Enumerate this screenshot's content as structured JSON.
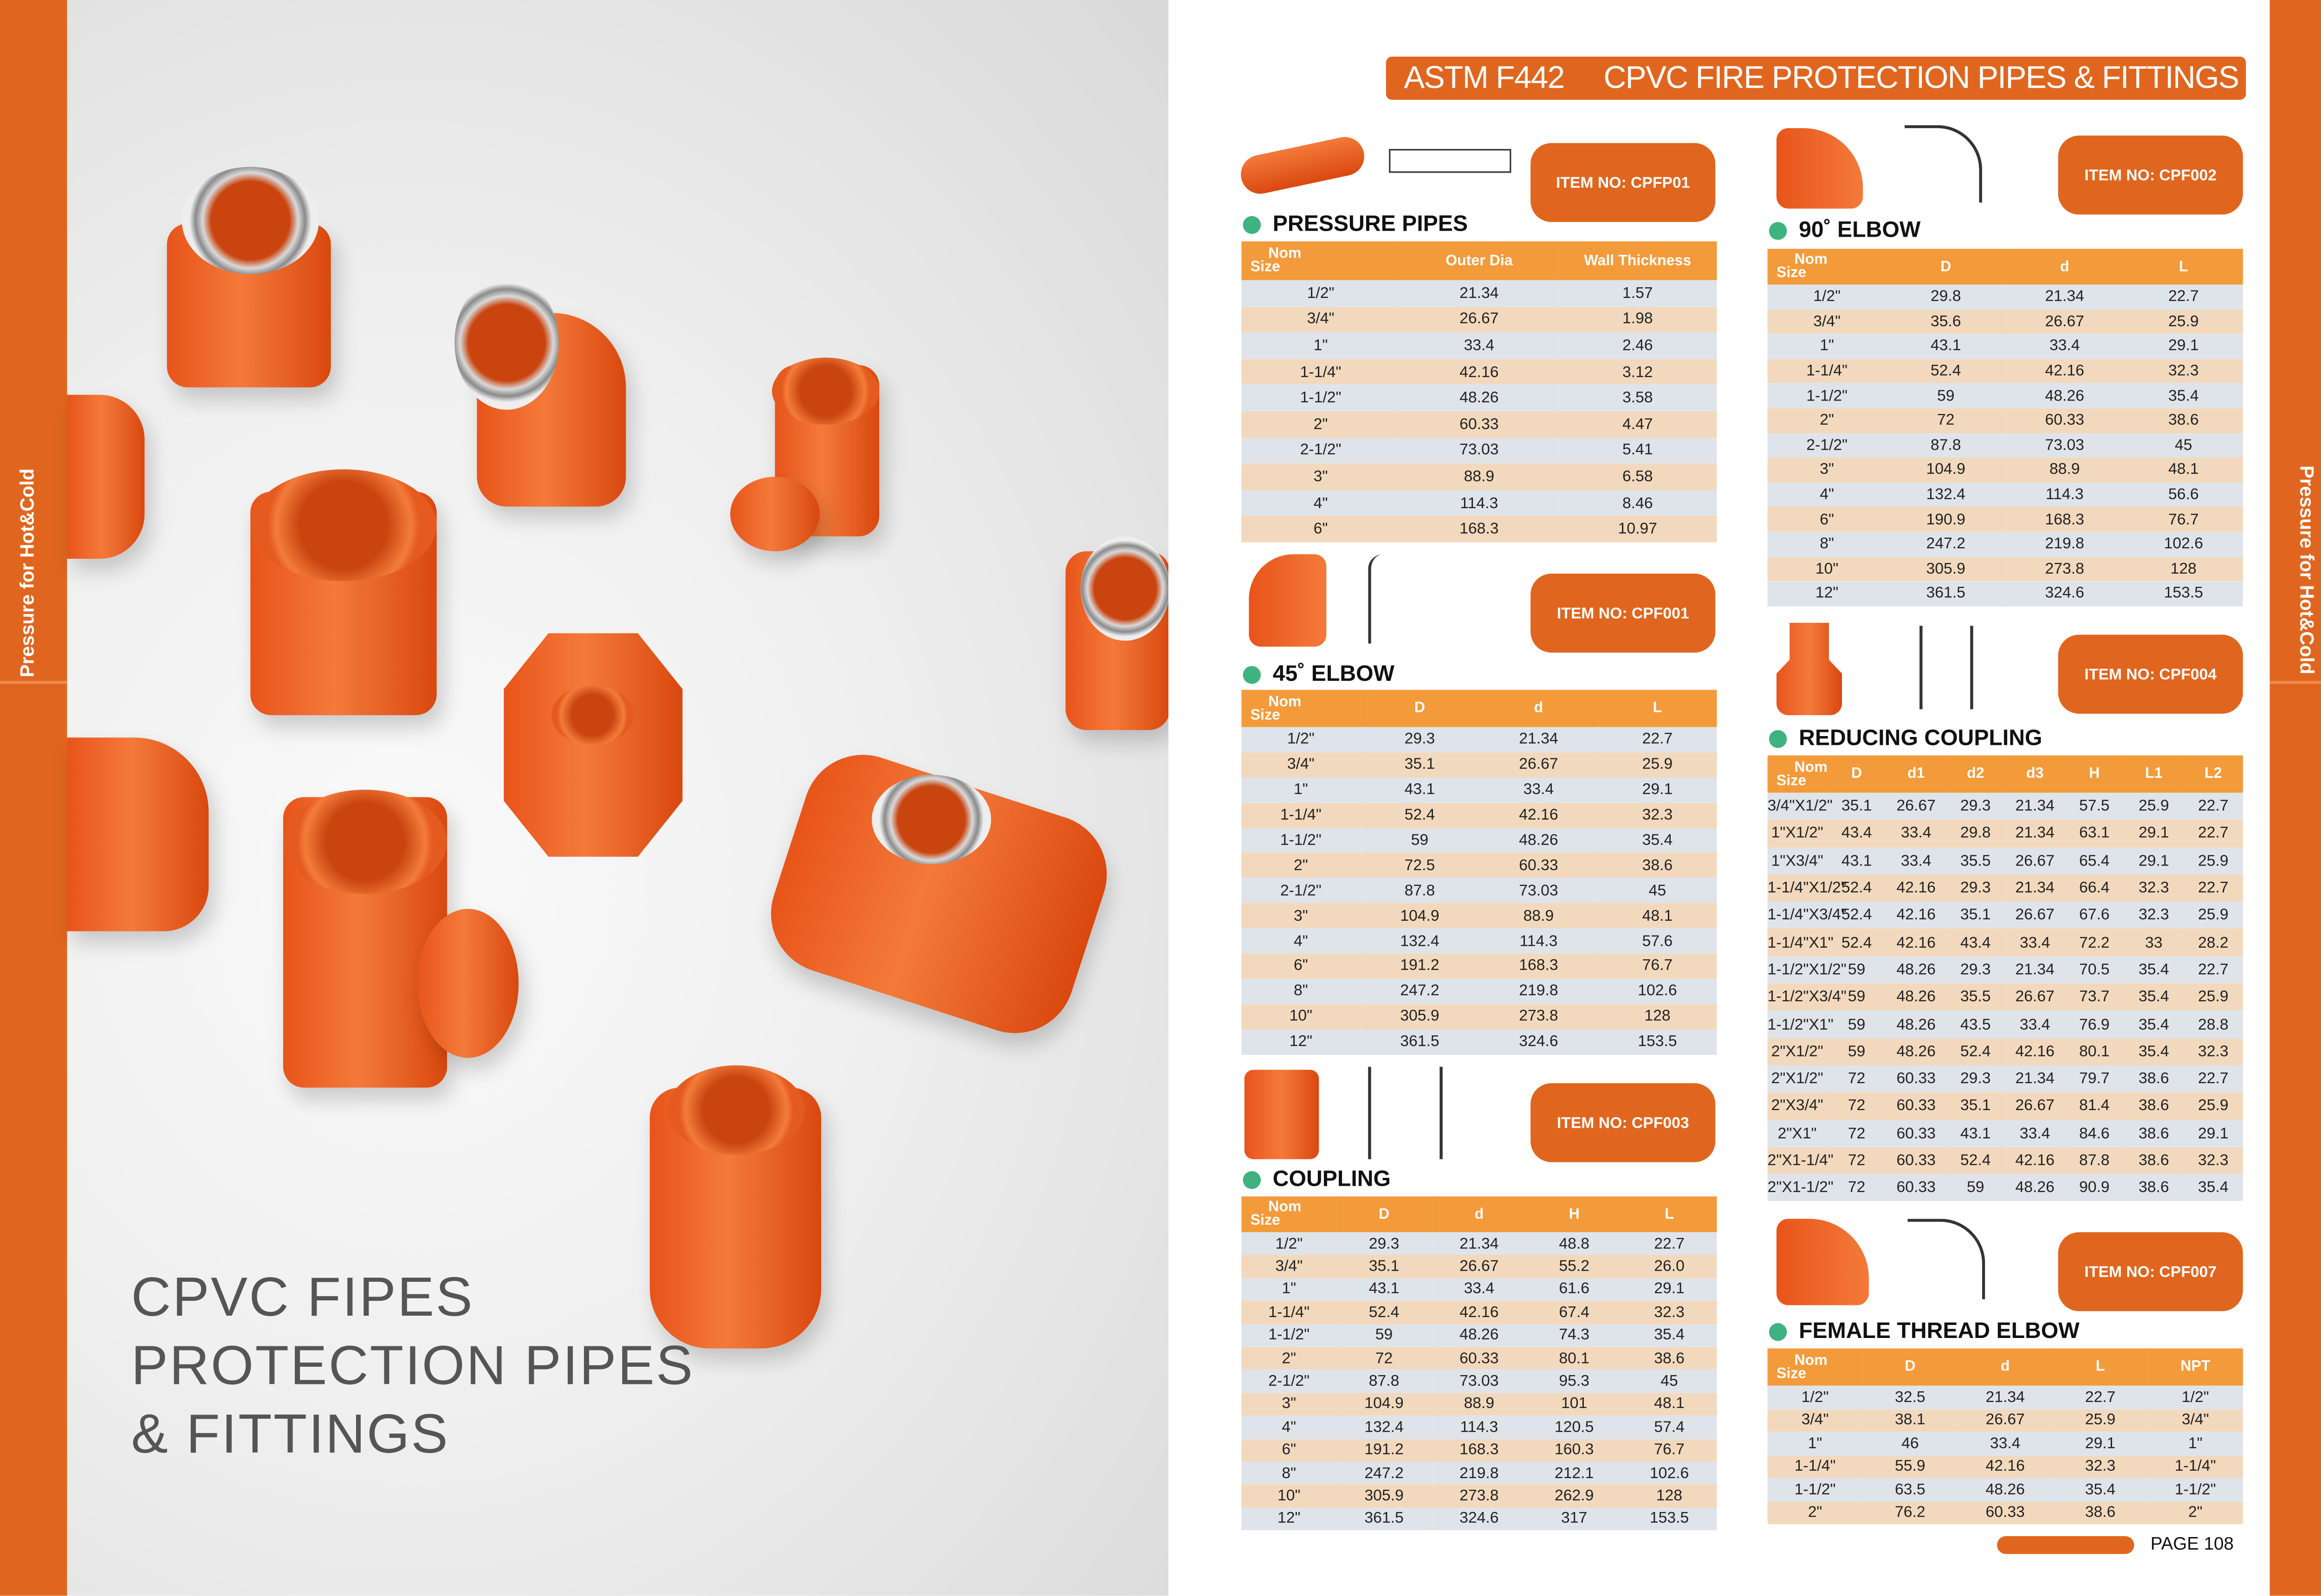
{
  "side_label": "Pressure for Hot&Cold",
  "left_title": [
    "CPVC FIPES",
    "PROTECTION PIPES",
    "& FITTINGS"
  ],
  "banner": {
    "standard": "ASTM F442",
    "title": "CPVC FIRE PROTECTION PIPES & FITTINGS"
  },
  "colors": {
    "accent": "#e0661f",
    "header": "#f39a3a",
    "row_odd": "#f2d9bd",
    "row_even": "#dfe4ea",
    "bullet": "#3fb37f"
  },
  "sections": {
    "pressure_pipes": {
      "title": "PRESSURE PIPES",
      "item_no": "ITEM NO:  CPFP01",
      "headers": [
        "Nom|Size",
        "Outer Dia",
        "Wall Thickness"
      ],
      "rows": [
        [
          "1/2\"",
          "21.34",
          "1.57"
        ],
        [
          "3/4\"",
          "26.67",
          "1.98"
        ],
        [
          "1\"",
          "33.4",
          "2.46"
        ],
        [
          "1-1/4\"",
          "42.16",
          "3.12"
        ],
        [
          "1-1/2\"",
          "48.26",
          "3.58"
        ],
        [
          "2\"",
          "60.33",
          "4.47"
        ],
        [
          "2-1/2\"",
          "73.03",
          "5.41"
        ],
        [
          "3\"",
          "88.9",
          "6.58"
        ],
        [
          "4\"",
          "114.3",
          "8.46"
        ],
        [
          "6\"",
          "168.3",
          "10.97"
        ]
      ]
    },
    "elbow_45": {
      "title": "45˚ ELBOW",
      "item_no": "ITEM NO:  CPF001",
      "headers": [
        "Nom|Size",
        "D",
        "d",
        "L"
      ],
      "rows": [
        [
          "1/2\"",
          "29.3",
          "21.34",
          "22.7"
        ],
        [
          "3/4\"",
          "35.1",
          "26.67",
          "25.9"
        ],
        [
          "1\"",
          "43.1",
          "33.4",
          "29.1"
        ],
        [
          "1-1/4\"",
          "52.4",
          "42.16",
          "32.3"
        ],
        [
          "1-1/2\"",
          "59",
          "48.26",
          "35.4"
        ],
        [
          "2\"",
          "72.5",
          "60.33",
          "38.6"
        ],
        [
          "2-1/2\"",
          "87.8",
          "73.03",
          "45"
        ],
        [
          "3\"",
          "104.9",
          "88.9",
          "48.1"
        ],
        [
          "4\"",
          "132.4",
          "114.3",
          "57.6"
        ],
        [
          "6\"",
          "191.2",
          "168.3",
          "76.7"
        ],
        [
          "8\"",
          "247.2",
          "219.8",
          "102.6"
        ],
        [
          "10\"",
          "305.9",
          "273.8",
          "128"
        ],
        [
          "12\"",
          "361.5",
          "324.6",
          "153.5"
        ]
      ]
    },
    "coupling": {
      "title": "COUPLING",
      "item_no": "ITEM NO:  CPF003",
      "headers": [
        "Nom|Size",
        "D",
        "d",
        "H",
        "L"
      ],
      "rows": [
        [
          "1/2\"",
          "29.3",
          "21.34",
          "48.8",
          "22.7"
        ],
        [
          "3/4\"",
          "35.1",
          "26.67",
          "55.2",
          "26.0"
        ],
        [
          "1\"",
          "43.1",
          "33.4",
          "61.6",
          "29.1"
        ],
        [
          "1-1/4\"",
          "52.4",
          "42.16",
          "67.4",
          "32.3"
        ],
        [
          "1-1/2\"",
          "59",
          "48.26",
          "74.3",
          "35.4"
        ],
        [
          "2\"",
          "72",
          "60.33",
          "80.1",
          "38.6"
        ],
        [
          "2-1/2\"",
          "87.8",
          "73.03",
          "95.3",
          "45"
        ],
        [
          "3\"",
          "104.9",
          "88.9",
          "101",
          "48.1"
        ],
        [
          "4\"",
          "132.4",
          "114.3",
          "120.5",
          "57.4"
        ],
        [
          "6\"",
          "191.2",
          "168.3",
          "160.3",
          "76.7"
        ],
        [
          "8\"",
          "247.2",
          "219.8",
          "212.1",
          "102.6"
        ],
        [
          "10\"",
          "305.9",
          "273.8",
          "262.9",
          "128"
        ],
        [
          "12\"",
          "361.5",
          "324.6",
          "317",
          "153.5"
        ]
      ]
    },
    "elbow_90": {
      "title": "90˚ ELBOW",
      "item_no": "ITEM NO:  CPF002",
      "headers": [
        "Nom|Size",
        "D",
        "d",
        "L"
      ],
      "rows": [
        [
          "1/2\"",
          "29.8",
          "21.34",
          "22.7"
        ],
        [
          "3/4\"",
          "35.6",
          "26.67",
          "25.9"
        ],
        [
          "1\"",
          "43.1",
          "33.4",
          "29.1"
        ],
        [
          "1-1/4\"",
          "52.4",
          "42.16",
          "32.3"
        ],
        [
          "1-1/2\"",
          "59",
          "48.26",
          "35.4"
        ],
        [
          "2\"",
          "72",
          "60.33",
          "38.6"
        ],
        [
          "2-1/2\"",
          "87.8",
          "73.03",
          "45"
        ],
        [
          "3\"",
          "104.9",
          "88.9",
          "48.1"
        ],
        [
          "4\"",
          "132.4",
          "114.3",
          "56.6"
        ],
        [
          "6\"",
          "190.9",
          "168.3",
          "76.7"
        ],
        [
          "8\"",
          "247.2",
          "219.8",
          "102.6"
        ],
        [
          "10\"",
          "305.9",
          "273.8",
          "128"
        ],
        [
          "12\"",
          "361.5",
          "324.6",
          "153.5"
        ]
      ]
    },
    "reducing_coupling": {
      "title": "REDUCING COUPLING",
      "item_no": "ITEM NO:  CPF004",
      "headers": [
        "Nom|Size",
        "D",
        "d1",
        "d2",
        "d3",
        "H",
        "L1",
        "L2"
      ],
      "rows": [
        [
          "3/4\"X1/2\"",
          "35.1",
          "26.67",
          "29.3",
          "21.34",
          "57.5",
          "25.9",
          "22.7"
        ],
        [
          "1\"X1/2\"",
          "43.4",
          "33.4",
          "29.8",
          "21.34",
          "63.1",
          "29.1",
          "22.7"
        ],
        [
          "1\"X3/4\"",
          "43.1",
          "33.4",
          "35.5",
          "26.67",
          "65.4",
          "29.1",
          "25.9"
        ],
        [
          "1-1/4\"X1/2\"",
          "52.4",
          "42.16",
          "29.3",
          "21.34",
          "66.4",
          "32.3",
          "22.7"
        ],
        [
          "1-1/4\"X3/4\"",
          "52.4",
          "42.16",
          "35.1",
          "26.67",
          "67.6",
          "32.3",
          "25.9"
        ],
        [
          "1-1/4\"X1\"",
          "52.4",
          "42.16",
          "43.4",
          "33.4",
          "72.2",
          "33",
          "28.2"
        ],
        [
          "1-1/2\"X1/2\"",
          "59",
          "48.26",
          "29.3",
          "21.34",
          "70.5",
          "35.4",
          "22.7"
        ],
        [
          "1-1/2\"X3/4\"",
          "59",
          "48.26",
          "35.5",
          "26.67",
          "73.7",
          "35.4",
          "25.9"
        ],
        [
          "1-1/2\"X1\"",
          "59",
          "48.26",
          "43.5",
          "33.4",
          "76.9",
          "35.4",
          "28.8"
        ],
        [
          "2\"X1/2\"",
          "59",
          "48.26",
          "52.4",
          "42.16",
          "80.1",
          "35.4",
          "32.3"
        ],
        [
          "2\"X1/2\"",
          "72",
          "60.33",
          "29.3",
          "21.34",
          "79.7",
          "38.6",
          "22.7"
        ],
        [
          "2\"X3/4\"",
          "72",
          "60.33",
          "35.1",
          "26.67",
          "81.4",
          "38.6",
          "25.9"
        ],
        [
          "2\"X1\"",
          "72",
          "60.33",
          "43.1",
          "33.4",
          "84.6",
          "38.6",
          "29.1"
        ],
        [
          "2\"X1-1/4\"",
          "72",
          "60.33",
          "52.4",
          "42.16",
          "87.8",
          "38.6",
          "32.3"
        ],
        [
          "2\"X1-1/2\"",
          "72",
          "60.33",
          "59",
          "48.26",
          "90.9",
          "38.6",
          "35.4"
        ]
      ]
    },
    "female_thread_elbow": {
      "title": "FEMALE THREAD ELBOW",
      "item_no": "ITEM NO:  CPF007",
      "headers": [
        "Nom|Size",
        "D",
        "d",
        "L",
        "NPT"
      ],
      "rows": [
        [
          "1/2\"",
          "32.5",
          "21.34",
          "22.7",
          "1/2\""
        ],
        [
          "3/4\"",
          "38.1",
          "26.67",
          "25.9",
          "3/4\""
        ],
        [
          "1\"",
          "46",
          "33.4",
          "29.1",
          "1\""
        ],
        [
          "1-1/4\"",
          "55.9",
          "42.16",
          "32.3",
          "1-1/4\""
        ],
        [
          "1-1/2\"",
          "63.5",
          "48.26",
          "35.4",
          "1-1/2\""
        ],
        [
          "2\"",
          "76.2",
          "60.33",
          "38.6",
          "2\""
        ]
      ]
    }
  },
  "page_number": "PAGE 108"
}
